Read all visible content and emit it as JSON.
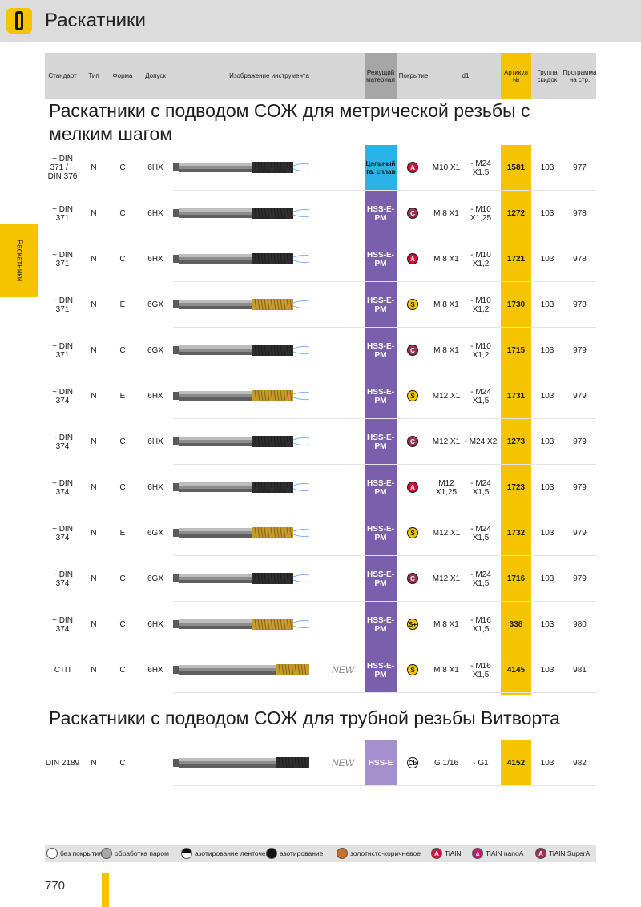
{
  "page": {
    "title": "Раскатники",
    "side_tab": "Раскатники",
    "page_number": "770"
  },
  "header": {
    "standard": "Стандарт",
    "type": "Тип",
    "form": "Форма",
    "tolerance": "Допуск",
    "image": "Изображение инструмента",
    "cutting_material": "Режущий материал",
    "coating": "Покрытие",
    "d1": "d1",
    "article": "Артикул №",
    "discount_group": "Группа скидок",
    "program_page": "Программа на стр."
  },
  "sections": [
    {
      "title": "Раскатники с подводом СОЖ для метрической резьбы с мелким шагом",
      "rows": [
        {
          "standard": "~ DIN 371 / ~ DIN 376",
          "type": "N",
          "form": "C",
          "tolerance": "6HX",
          "material": "Цельный тв. сплав",
          "material_style": "carbide",
          "coating": "A",
          "coating_style": "A",
          "d1_from": "M10 X1",
          "d1_to": "- M24 X1,5",
          "article": "1581",
          "group": "103",
          "page": "977",
          "tool": "dark"
        },
        {
          "standard": "~ DIN 371",
          "type": "N",
          "form": "C",
          "tolerance": "6HX",
          "material": "HSS-E-PM",
          "material_style": "hss",
          "coating": "C",
          "coating_style": "C",
          "d1_from": "M 8 X1",
          "d1_to": "- M10 X1,25",
          "article": "1272",
          "group": "103",
          "page": "978",
          "tool": "dark"
        },
        {
          "standard": "~ DIN 371",
          "type": "N",
          "form": "C",
          "tolerance": "6HX",
          "material": "HSS-E-PM",
          "material_style": "hss",
          "coating": "A",
          "coating_style": "A",
          "d1_from": "M 8 X1",
          "d1_to": "- M10 X1,2",
          "article": "1721",
          "group": "103",
          "page": "978",
          "tool": "dark"
        },
        {
          "standard": "~ DIN 371",
          "type": "N",
          "form": "E",
          "tolerance": "6GX",
          "material": "HSS-E-PM",
          "material_style": "hss",
          "coating": "S",
          "coating_style": "S",
          "d1_from": "M 8 X1",
          "d1_to": "- M10 X1,2",
          "article": "1730",
          "group": "103",
          "page": "978",
          "tool": "gold"
        },
        {
          "standard": "~ DIN 371",
          "type": "N",
          "form": "C",
          "tolerance": "6GX",
          "material": "HSS-E-PM",
          "material_style": "hss",
          "coating": "C",
          "coating_style": "C",
          "d1_from": "M 8 X1",
          "d1_to": "- M10 X1,2",
          "article": "1715",
          "group": "103",
          "page": "979",
          "tool": "dark"
        },
        {
          "standard": "~ DIN 374",
          "type": "N",
          "form": "E",
          "tolerance": "6HX",
          "material": "HSS-E-PM",
          "material_style": "hss",
          "coating": "S",
          "coating_style": "S",
          "d1_from": "M12 X1",
          "d1_to": "- M24 X1,5",
          "article": "1731",
          "group": "103",
          "page": "979",
          "tool": "gold"
        },
        {
          "standard": "~ DIN 374",
          "type": "N",
          "form": "C",
          "tolerance": "6HX",
          "material": "HSS-E-PM",
          "material_style": "hss",
          "coating": "C",
          "coating_style": "C",
          "d1_from": "M12 X1",
          "d1_to": "- M24 X2",
          "article": "1273",
          "group": "103",
          "page": "979",
          "tool": "dark"
        },
        {
          "standard": "~ DIN 374",
          "type": "N",
          "form": "C",
          "tolerance": "6HX",
          "material": "HSS-E-PM",
          "material_style": "hss",
          "coating": "A",
          "coating_style": "A",
          "d1_from": "M12 X1,25",
          "d1_to": "- M24 X1,5",
          "article": "1723",
          "group": "103",
          "page": "979",
          "tool": "dark"
        },
        {
          "standard": "~ DIN 374",
          "type": "N",
          "form": "E",
          "tolerance": "6GX",
          "material": "HSS-E-PM",
          "material_style": "hss",
          "coating": "S",
          "coating_style": "S",
          "d1_from": "M12 X1",
          "d1_to": "- M24 X1,5",
          "article": "1732",
          "group": "103",
          "page": "979",
          "tool": "gold"
        },
        {
          "standard": "~ DIN 374",
          "type": "N",
          "form": "C",
          "tolerance": "6GX",
          "material": "HSS-E-PM",
          "material_style": "hss",
          "coating": "C",
          "coating_style": "C",
          "d1_from": "M12 X1",
          "d1_to": "- M24 X1,5",
          "article": "1716",
          "group": "103",
          "page": "979",
          "tool": "dark"
        },
        {
          "standard": "~ DIN 374",
          "type": "N",
          "form": "C",
          "tolerance": "6HX",
          "material": "HSS-E-PM",
          "material_style": "hss",
          "coating": "S+",
          "coating_style": "S",
          "d1_from": "M 8 X1",
          "d1_to": "- M16 X1,5",
          "article": "338",
          "group": "103",
          "page": "980",
          "tool": "gold"
        },
        {
          "standard": "СТП",
          "type": "N",
          "form": "C",
          "tolerance": "6HX",
          "material": "HSS-E-PM",
          "material_style": "hss",
          "coating": "S",
          "coating_style": "S",
          "d1_from": "M 8 X1",
          "d1_to": "- M16 X1,5",
          "article": "4145",
          "group": "103",
          "page": "981",
          "tool": "long-gold",
          "new": "NEW"
        }
      ]
    },
    {
      "title": "Раскатники с подводом СОЖ для трубной резьбы Витворта",
      "rows": [
        {
          "standard": "DIN 2189",
          "type": "N",
          "form": "C",
          "tolerance": "",
          "material": "HSS-E",
          "material_style": "hsse",
          "coating": "Cb",
          "coating_style": "Cb",
          "d1_from": "G 1/16",
          "d1_to": "- G1",
          "article": "4152",
          "group": "103",
          "page": "982",
          "tool": "pipe",
          "new": "NEW"
        }
      ]
    }
  ],
  "legend": [
    {
      "label": "без покрытия",
      "color": "#ffffff",
      "mark": ""
    },
    {
      "label": "обработка паром",
      "color": "#a8a8a8",
      "mark": ""
    },
    {
      "label": "азотирование ленточек",
      "color": "half",
      "mark": ""
    },
    {
      "label": "азотирование",
      "color": "#111111",
      "mark": ""
    },
    {
      "label": "золотисто-коричневое",
      "color": "#c8702a",
      "mark": ""
    },
    {
      "label": "TiAlN",
      "color": "#d10f3b",
      "mark": "A"
    },
    {
      "label": "TiAlN nanoA",
      "color": "#c41a6e",
      "mark": "a"
    },
    {
      "label": "TiAlN SuperA",
      "color": "#9c2f52",
      "mark": "A"
    }
  ]
}
